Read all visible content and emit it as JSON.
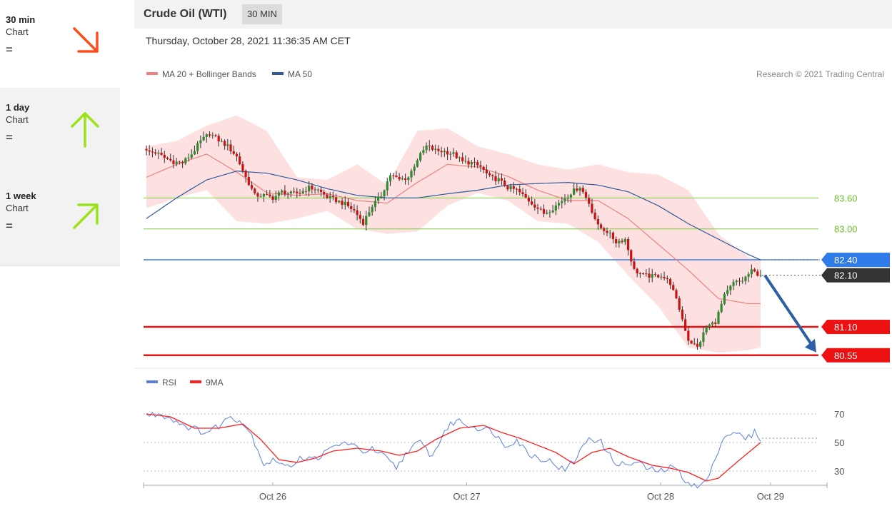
{
  "sidebar": {
    "items": [
      {
        "title": "30 min",
        "subtitle": "Chart",
        "status": "=",
        "arrow": "down-right-arrow-icon",
        "color": "#ff4d1f"
      },
      {
        "title": "1 day",
        "subtitle": "Chart",
        "status": "=",
        "arrow": "up-arrow-icon",
        "color": "#9be21a"
      },
      {
        "title": "1 week",
        "subtitle": "Chart",
        "status": "=",
        "arrow": "up-right-arrow-icon",
        "color": "#9be21a"
      }
    ]
  },
  "header": {
    "title": "Crude Oil (WTI)",
    "interval": "30 MIN"
  },
  "datetime": "Thursday, October 28, 2021 11:36:35 AM CET",
  "copyright": "Research © 2021 Trading Central",
  "colors": {
    "ma20": "#f08080",
    "ma50": "#2f5b9e",
    "band": "#fde0e0",
    "up": "#2e8b2e",
    "down": "#cc1111",
    "rsi": "#5b7fe0",
    "rsi_ma": "#ff2020",
    "green_level": "#7ccc3c",
    "red_level": "#ee1111",
    "blue_level": "#3b7be8",
    "arrow": "#2e5ea6",
    "tag_blue": "#2f7be8",
    "tag_dark": "#333333",
    "tag_red": "#ee1111"
  },
  "chart_data": [
    {
      "type": "candlestick",
      "legend": [
        "MA 20 + Bollinger Bands",
        "MA 50"
      ],
      "ylim": [
        80.45,
        85.5
      ],
      "x_ticks": [
        {
          "label": "Oct 26",
          "pos": 0.2
        },
        {
          "label": "Oct 27",
          "pos": 0.5
        },
        {
          "label": "Oct 28",
          "pos": 0.8
        },
        {
          "label": "Oct 29",
          "pos": 0.97
        }
      ],
      "levels": [
        {
          "label": "83.60",
          "value": 83.6,
          "style": "green"
        },
        {
          "label": "83.00",
          "value": 83.0,
          "style": "green"
        },
        {
          "label": "82.40",
          "value": 82.4,
          "style": "blue"
        },
        {
          "label": "81.10",
          "value": 81.1,
          "style": "red"
        },
        {
          "label": "80.55",
          "value": 80.55,
          "style": "red"
        }
      ],
      "last_price": {
        "label": "82.10",
        "value": 82.1
      },
      "forecast_arrow": {
        "from": 82.1,
        "to": 80.55
      },
      "close_anchors": [
        [
          0,
          84.5
        ],
        [
          3,
          84.48
        ],
        [
          6,
          84.38
        ],
        [
          9,
          84.3
        ],
        [
          12,
          84.28
        ],
        [
          15,
          84.45
        ],
        [
          18,
          84.7
        ],
        [
          21,
          84.85
        ],
        [
          24,
          84.72
        ],
        [
          27,
          84.6
        ],
        [
          30,
          84.4
        ],
        [
          33,
          84.0
        ],
        [
          36,
          83.65
        ],
        [
          39,
          83.65
        ],
        [
          42,
          83.6
        ],
        [
          45,
          83.72
        ],
        [
          48,
          83.68
        ],
        [
          51,
          83.7
        ],
        [
          54,
          83.8
        ],
        [
          57,
          83.75
        ],
        [
          60,
          83.62
        ],
        [
          63,
          83.55
        ],
        [
          66,
          83.48
        ],
        [
          69,
          83.35
        ],
        [
          72,
          83.12
        ],
        [
          75,
          83.45
        ],
        [
          78,
          83.65
        ],
        [
          81,
          84.05
        ],
        [
          84,
          83.95
        ],
        [
          87,
          84.0
        ],
        [
          90,
          84.35
        ],
        [
          93,
          84.6
        ],
        [
          96,
          84.52
        ],
        [
          99,
          84.5
        ],
        [
          102,
          84.45
        ],
        [
          105,
          84.3
        ],
        [
          108,
          84.28
        ],
        [
          111,
          84.2
        ],
        [
          114,
          84.0
        ],
        [
          117,
          83.95
        ],
        [
          120,
          83.8
        ],
        [
          123,
          83.75
        ],
        [
          126,
          83.6
        ],
        [
          129,
          83.45
        ],
        [
          132,
          83.3
        ],
        [
          135,
          83.4
        ],
        [
          138,
          83.55
        ],
        [
          141,
          83.7
        ],
        [
          144,
          83.82
        ],
        [
          147,
          83.5
        ],
        [
          150,
          83.05
        ],
        [
          153,
          82.95
        ],
        [
          156,
          82.75
        ],
        [
          159,
          82.8
        ],
        [
          162,
          82.2
        ],
        [
          165,
          82.1
        ],
        [
          168,
          82.08
        ],
        [
          171,
          82.1
        ],
        [
          174,
          81.95
        ],
        [
          177,
          81.45
        ],
        [
          180,
          80.85
        ],
        [
          183,
          80.7
        ],
        [
          186,
          81.1
        ],
        [
          189,
          81.2
        ],
        [
          192,
          81.7
        ],
        [
          195,
          81.95
        ],
        [
          198,
          82.0
        ],
        [
          201,
          82.18
        ],
        [
          204,
          82.1
        ]
      ],
      "ma50_anchors": [
        [
          0,
          83.2
        ],
        [
          10,
          83.6
        ],
        [
          20,
          83.95
        ],
        [
          30,
          84.12
        ],
        [
          40,
          84.08
        ],
        [
          50,
          83.95
        ],
        [
          60,
          83.78
        ],
        [
          70,
          83.65
        ],
        [
          80,
          83.6
        ],
        [
          90,
          83.6
        ],
        [
          100,
          83.68
        ],
        [
          110,
          83.75
        ],
        [
          120,
          83.85
        ],
        [
          130,
          83.88
        ],
        [
          140,
          83.9
        ],
        [
          150,
          83.85
        ],
        [
          160,
          83.72
        ],
        [
          170,
          83.45
        ],
        [
          180,
          83.1
        ],
        [
          190,
          82.8
        ],
        [
          200,
          82.5
        ],
        [
          204,
          82.4
        ]
      ],
      "ma20_anchors": [
        [
          0,
          84.0
        ],
        [
          10,
          84.25
        ],
        [
          20,
          84.45
        ],
        [
          30,
          84.1
        ],
        [
          40,
          83.7
        ],
        [
          50,
          83.65
        ],
        [
          60,
          83.68
        ],
        [
          70,
          83.55
        ],
        [
          80,
          83.5
        ],
        [
          90,
          83.9
        ],
        [
          100,
          84.25
        ],
        [
          110,
          84.2
        ],
        [
          120,
          84.02
        ],
        [
          130,
          83.75
        ],
        [
          140,
          83.55
        ],
        [
          150,
          83.55
        ],
        [
          160,
          83.2
        ],
        [
          170,
          82.7
        ],
        [
          180,
          82.2
        ],
        [
          190,
          81.65
        ],
        [
          200,
          81.55
        ],
        [
          204,
          81.55
        ]
      ],
      "band_upper_anchors": [
        [
          0,
          84.6
        ],
        [
          10,
          84.7
        ],
        [
          20,
          85.0
        ],
        [
          30,
          85.2
        ],
        [
          40,
          84.9
        ],
        [
          50,
          84.0
        ],
        [
          60,
          83.95
        ],
        [
          70,
          84.25
        ],
        [
          80,
          83.85
        ],
        [
          90,
          84.9
        ],
        [
          100,
          84.95
        ],
        [
          110,
          84.6
        ],
        [
          120,
          84.45
        ],
        [
          130,
          84.25
        ],
        [
          140,
          84.15
        ],
        [
          150,
          84.25
        ],
        [
          160,
          84.1
        ],
        [
          170,
          84.05
        ],
        [
          180,
          83.75
        ],
        [
          190,
          82.9
        ],
        [
          200,
          82.45
        ],
        [
          204,
          82.4
        ]
      ],
      "band_lower_anchors": [
        [
          0,
          83.4
        ],
        [
          10,
          83.6
        ],
        [
          20,
          83.75
        ],
        [
          30,
          83.15
        ],
        [
          40,
          83.1
        ],
        [
          50,
          83.2
        ],
        [
          60,
          83.35
        ],
        [
          70,
          83.0
        ],
        [
          80,
          82.9
        ],
        [
          90,
          82.95
        ],
        [
          100,
          83.45
        ],
        [
          110,
          83.7
        ],
        [
          120,
          83.55
        ],
        [
          130,
          83.15
        ],
        [
          140,
          83.1
        ],
        [
          150,
          82.75
        ],
        [
          160,
          82.1
        ],
        [
          170,
          81.5
        ],
        [
          180,
          80.7
        ],
        [
          190,
          80.6
        ],
        [
          200,
          80.65
        ],
        [
          204,
          80.7
        ]
      ]
    },
    {
      "type": "line",
      "legend": [
        "RSI",
        "9MA"
      ],
      "ylim": [
        15,
        80
      ],
      "y_ticks": [
        "70",
        "50",
        "30"
      ],
      "rsi_anchors": [
        [
          0,
          69
        ],
        [
          5,
          70
        ],
        [
          10,
          65
        ],
        [
          15,
          60
        ],
        [
          20,
          57
        ],
        [
          25,
          63
        ],
        [
          28,
          69
        ],
        [
          32,
          64
        ],
        [
          35,
          55
        ],
        [
          39,
          35
        ],
        [
          43,
          38
        ],
        [
          47,
          32
        ],
        [
          51,
          40
        ],
        [
          55,
          38
        ],
        [
          59,
          42
        ],
        [
          63,
          48
        ],
        [
          67,
          50
        ],
        [
          71,
          44
        ],
        [
          75,
          45
        ],
        [
          79,
          40
        ],
        [
          83,
          32
        ],
        [
          87,
          45
        ],
        [
          91,
          50
        ],
        [
          95,
          40
        ],
        [
          99,
          58
        ],
        [
          103,
          66
        ],
        [
          107,
          62
        ],
        [
          111,
          60
        ],
        [
          115,
          58
        ],
        [
          119,
          48
        ],
        [
          123,
          52
        ],
        [
          127,
          42
        ],
        [
          131,
          39
        ],
        [
          135,
          36
        ],
        [
          139,
          30
        ],
        [
          143,
          40
        ],
        [
          147,
          54
        ],
        [
          151,
          50
        ],
        [
          155,
          37
        ],
        [
          159,
          34
        ],
        [
          163,
          36
        ],
        [
          167,
          31
        ],
        [
          171,
          30
        ],
        [
          175,
          33
        ],
        [
          179,
          24
        ],
        [
          183,
          18
        ],
        [
          187,
          26
        ],
        [
          191,
          52
        ],
        [
          195,
          58
        ],
        [
          199,
          52
        ],
        [
          202,
          57
        ],
        [
          204,
          53
        ]
      ],
      "rsi_ma_anchors": [
        [
          0,
          70
        ],
        [
          8,
          68
        ],
        [
          16,
          60
        ],
        [
          24,
          60
        ],
        [
          32,
          63
        ],
        [
          38,
          52
        ],
        [
          44,
          38
        ],
        [
          50,
          36
        ],
        [
          56,
          39
        ],
        [
          62,
          44
        ],
        [
          70,
          46
        ],
        [
          78,
          44
        ],
        [
          84,
          41
        ],
        [
          90,
          44
        ],
        [
          96,
          52
        ],
        [
          104,
          60
        ],
        [
          112,
          62
        ],
        [
          118,
          57
        ],
        [
          124,
          53
        ],
        [
          130,
          48
        ],
        [
          136,
          43
        ],
        [
          142,
          35
        ],
        [
          148,
          43
        ],
        [
          154,
          46
        ],
        [
          160,
          40
        ],
        [
          168,
          34
        ],
        [
          174,
          32
        ],
        [
          180,
          29
        ],
        [
          186,
          23
        ],
        [
          190,
          25
        ],
        [
          196,
          36
        ],
        [
          204,
          50
        ]
      ]
    }
  ]
}
